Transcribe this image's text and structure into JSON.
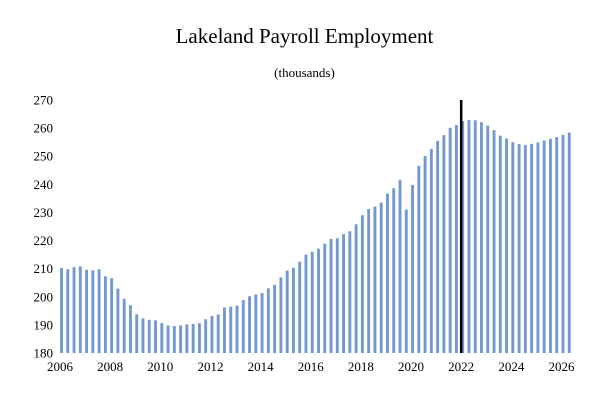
{
  "chart_data": {
    "type": "bar",
    "title": "Lakeland Payroll Employment",
    "subtitle": "(thousands)",
    "xlabel": "",
    "ylabel": "",
    "ylim": [
      180,
      270
    ],
    "yticks": [
      180,
      190,
      200,
      210,
      220,
      230,
      240,
      250,
      260,
      270
    ],
    "xlim": [
      2006,
      2026.3
    ],
    "xticks": [
      "2006",
      "2008",
      "2010",
      "2012",
      "2014",
      "2016",
      "2018",
      "2020",
      "2022",
      "2024",
      "2026"
    ],
    "bar_color": "#7399cf",
    "marker_color": "#000000",
    "forecast_start": 2022,
    "grid": false,
    "legend": "none",
    "x_start": 2006.0,
    "x_step": 0.25,
    "values": [
      210.2,
      209.8,
      210.5,
      210.8,
      209.6,
      209.4,
      209.8,
      207.3,
      206.6,
      202.9,
      199.3,
      197.0,
      193.8,
      192.3,
      191.8,
      191.6,
      190.6,
      189.8,
      189.6,
      189.8,
      190.2,
      190.3,
      190.6,
      192.0,
      193.2,
      193.7,
      196.2,
      196.5,
      196.9,
      198.8,
      200.2,
      200.8,
      201.3,
      203.0,
      204.2,
      206.9,
      209.3,
      210.3,
      212.5,
      215.0,
      216.0,
      217.1,
      218.9,
      220.6,
      220.8,
      222.3,
      223.3,
      225.8,
      229.0,
      231.2,
      232.1,
      233.5,
      236.7,
      238.6,
      241.6,
      231.0,
      239.8,
      246.6,
      250.1,
      252.6,
      255.4,
      257.5,
      260.1,
      261.1,
      262.5,
      262.9,
      262.8,
      262.1,
      260.9,
      259.3,
      257.3,
      256.3,
      255.0,
      254.3,
      254.0,
      254.4,
      254.9,
      255.6,
      256.2,
      256.8,
      257.6,
      258.4
    ]
  }
}
